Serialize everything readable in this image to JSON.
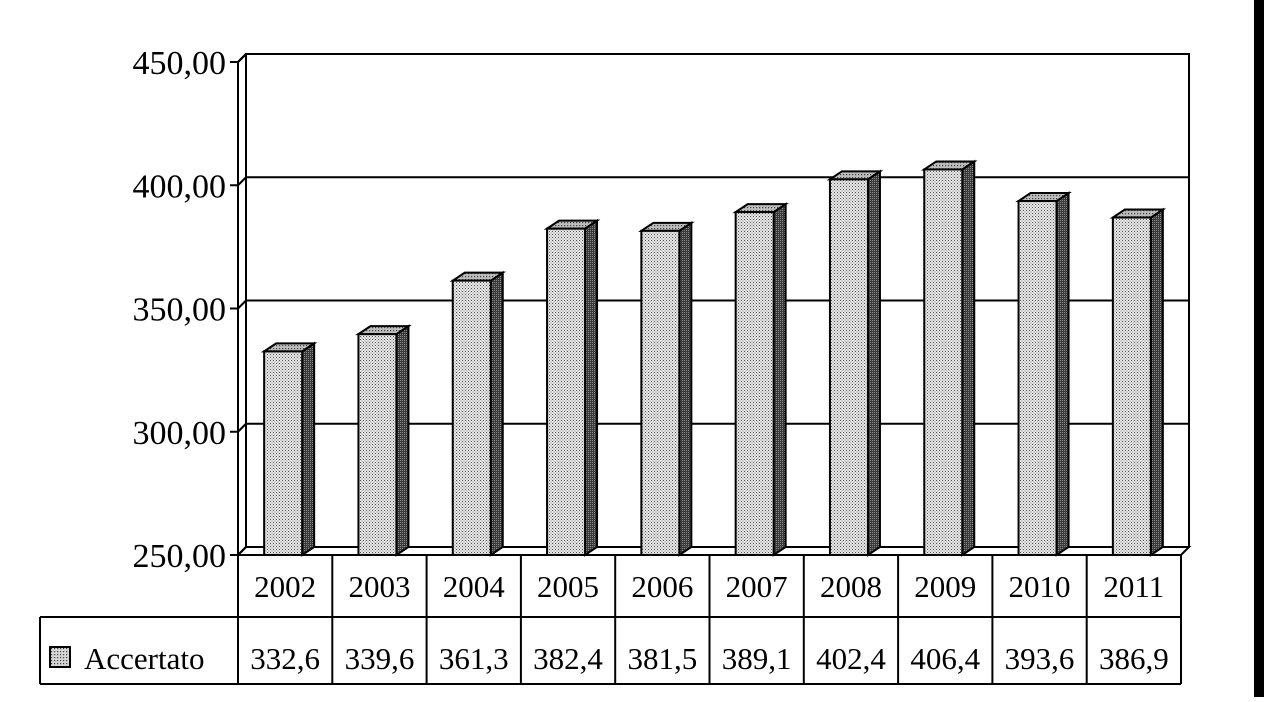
{
  "chart_data": {
    "type": "bar",
    "categories": [
      "2002",
      "2003",
      "2004",
      "2005",
      "2006",
      "2007",
      "2008",
      "2009",
      "2010",
      "2011"
    ],
    "series": [
      {
        "name": "Accertato",
        "values": [
          332.6,
          339.6,
          361.3,
          382.4,
          381.5,
          389.1,
          402.4,
          406.4,
          393.6,
          386.9
        ],
        "labels": [
          "332,6",
          "339,6",
          "361,3",
          "382,4",
          "381,5",
          "389,1",
          "402,4",
          "406,4",
          "393,6",
          "386,9"
        ]
      }
    ],
    "yticks": [
      "250,00",
      "300,00",
      "350,00",
      "400,00",
      "450,00"
    ],
    "ylim": [
      250,
      450
    ],
    "grid": true,
    "legend": "data-table-left",
    "title": "",
    "xlabel": "",
    "ylabel": ""
  }
}
